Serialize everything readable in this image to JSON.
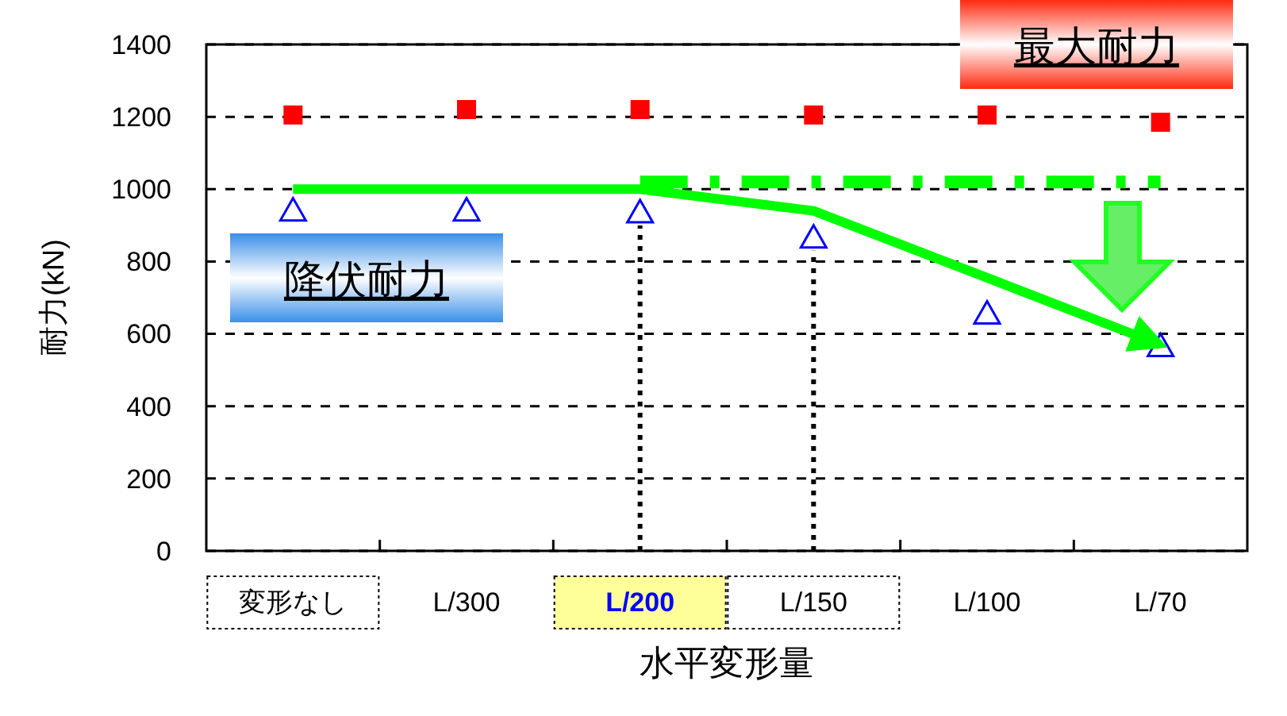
{
  "chart_data": {
    "type": "scatter",
    "ylabel": "耐力(kN)",
    "xlabel": "水平変形量",
    "categories": [
      "変形なし",
      "L/300",
      "L/200",
      "L/150",
      "L/100",
      "L/70"
    ],
    "ylim": [
      0,
      1400
    ],
    "yticks": [
      0,
      200,
      400,
      600,
      800,
      1000,
      1200,
      1400
    ],
    "grid": "y",
    "series": [
      {
        "marker": "square",
        "color": "#ff0000",
        "values": [
          1205,
          1220,
          1220,
          1205,
          1205,
          1185
        ]
      },
      {
        "marker": "triangle",
        "color": "#0000ff",
        "values": [
          940,
          940,
          935,
          865,
          655,
          565
        ]
      },
      {
        "type": "line",
        "marker": "none",
        "line_style": "solid",
        "color": "#00ff00",
        "values": [
          1000,
          1000,
          1000,
          940,
          755,
          570
        ]
      },
      {
        "type": "line",
        "marker": "none",
        "line_style": "dashed",
        "color": "#00ff00",
        "values": [
          null,
          null,
          1020,
          1020,
          1020,
          1020
        ]
      }
    ],
    "annotations": [
      "最大耐力",
      "降伏耐力"
    ]
  }
}
